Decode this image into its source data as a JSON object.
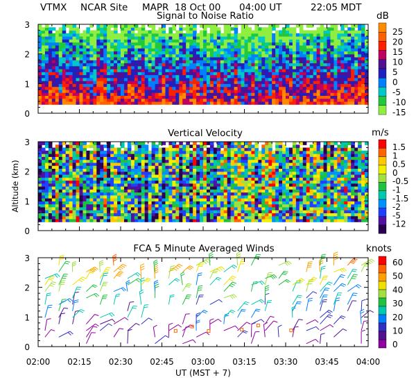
{
  "header": {
    "site_code": "VTMX",
    "site_name": "NCAR Site",
    "instrument": "MAPR",
    "date": "18 Oct 00",
    "time_ut": "04:00 UT",
    "time_local": "22:05 MDT"
  },
  "colors": {
    "background": "#ffffff",
    "missing": "#ffffff",
    "barb_low": "#2040ff",
    "barb_mid": "#f0c000",
    "barb_high": "#ff2000"
  },
  "chart_data": [
    {
      "type": "heatmap",
      "title": "Signal to Noise Ratio",
      "units_label": "dB",
      "xlabel": "",
      "ylabel": "",
      "x_range_minutes": [
        0,
        120
      ],
      "ylim": [
        0,
        3
      ],
      "data_altitude_range_km": [
        0.3,
        3.0
      ],
      "yticks": [
        "0",
        "1",
        "2",
        "3"
      ],
      "colorbar": {
        "labels": [
          "25",
          "20",
          "15",
          "10",
          "5",
          "0",
          "-5",
          "-10",
          "-15"
        ],
        "colors": [
          "#ff8c00",
          "#ff6000",
          "#ff2000",
          "#c00060",
          "#501090",
          "#2020c0",
          "#0080ff",
          "#00c8c8",
          "#20c840",
          "#90ee40"
        ]
      }
    },
    {
      "type": "heatmap",
      "title": "Vertical Velocity",
      "units_label": "m/s",
      "xlabel": "",
      "ylabel": "Altitude (km)",
      "x_range_minutes": [
        0,
        120
      ],
      "ylim": [
        0,
        3
      ],
      "data_altitude_range_km": [
        0.3,
        3.0
      ],
      "yticks": [
        "0",
        "1",
        "2",
        "3"
      ],
      "colorbar": {
        "labels": [
          "1.5",
          "1",
          "0.5",
          "0",
          "-0.5",
          "-1",
          "-1.5",
          "-2",
          "-5",
          "-12"
        ],
        "colors": [
          "#ff0000",
          "#ff6400",
          "#ffc800",
          "#f0f000",
          "#a0e040",
          "#20c040",
          "#00c8b0",
          "#0090ff",
          "#2040ff",
          "#5010a0",
          "#2a0050"
        ]
      }
    },
    {
      "type": "scatter",
      "title": "FCA 5 Minute Averaged Winds",
      "units_label": "knots",
      "xlabel": "UT   (MST + 7)",
      "ylabel": "",
      "x_range_minutes": [
        0,
        120
      ],
      "ylim": [
        0,
        3
      ],
      "yticks": [
        "0",
        "1",
        "2",
        "3"
      ],
      "colorbar": {
        "labels": [
          "60",
          "50",
          "40",
          "30",
          "20",
          "10",
          "0"
        ],
        "colors": [
          "#ff0000",
          "#ff6400",
          "#ffa000",
          "#f0e000",
          "#a0e040",
          "#20c040",
          "#00c8b0",
          "#0080ff",
          "#3030c0",
          "#501090",
          "#9000a0"
        ]
      }
    }
  ],
  "time_axis": {
    "tick_labels": [
      "02:00",
      "02:15",
      "02:30",
      "02:45",
      "03:00",
      "03:15",
      "03:30",
      "03:45",
      "04:00"
    ],
    "label": "UT   (MST + 7)"
  }
}
